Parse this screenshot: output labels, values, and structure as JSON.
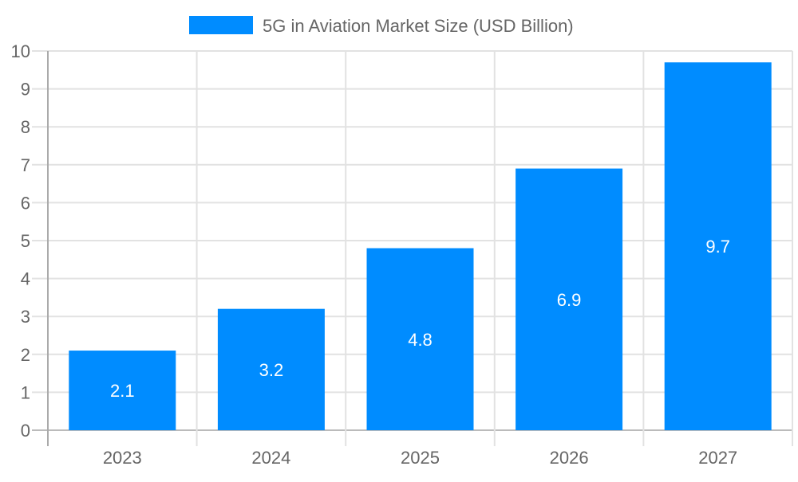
{
  "chart_data": {
    "type": "bar",
    "categories": [
      "2023",
      "2024",
      "2025",
      "2026",
      "2027"
    ],
    "series": [
      {
        "name": "5G in Aviation Market Size (USD Billion)",
        "values": [
          2.1,
          3.2,
          4.8,
          6.9,
          9.7
        ],
        "color": "#008cff"
      }
    ],
    "data_labels": [
      "2.1",
      "3.2",
      "4.8",
      "6.9",
      "9.7"
    ],
    "yticks": [
      "0",
      "1",
      "2",
      "3",
      "4",
      "5",
      "6",
      "7",
      "8",
      "9",
      "10"
    ],
    "ylim": [
      0,
      10
    ],
    "grid": true,
    "legend_position": "top"
  }
}
